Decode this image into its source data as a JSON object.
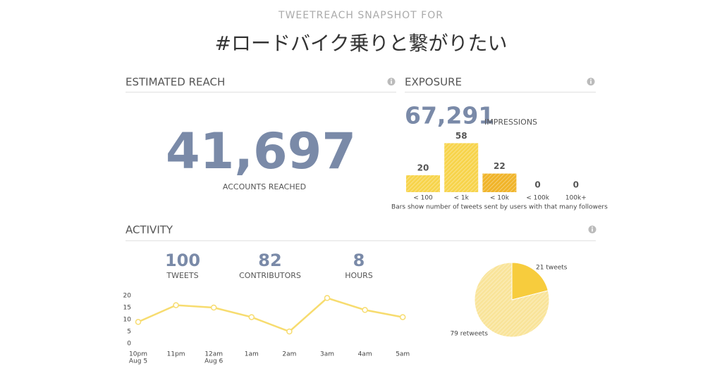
{
  "header": {
    "kicker": "TWEETREACH SNAPSHOT FOR",
    "title": "#ロードバイク乗りと繋がりたい"
  },
  "reach": {
    "heading": "ESTIMATED REACH",
    "value": "41,697",
    "label": "ACCOUNTS REACHED"
  },
  "exposure": {
    "heading": "EXPOSURE",
    "value": "67,291",
    "label": "IMPRESSIONS"
  },
  "activity": {
    "heading": "ACTIVITY",
    "stats": [
      {
        "value": "100",
        "label": "TWEETS"
      },
      {
        "value": "82",
        "label": "CONTRIBUTORS"
      },
      {
        "value": "8",
        "label": "HOURS"
      }
    ]
  },
  "chart_data": [
    {
      "type": "bar",
      "categories": [
        "< 100",
        "< 1k",
        "< 10k",
        "< 100k",
        "100k+"
      ],
      "values": [
        20,
        58,
        22,
        0,
        0
      ],
      "colors": [
        "#f7d44c",
        "#f7d44c",
        "#f0b429",
        "#f7d44c",
        "#f7d44c"
      ],
      "note": "Bars show number of tweets sent by users with that many followers"
    },
    {
      "type": "line",
      "categories": [
        "10pm",
        "11pm",
        "12am",
        "1am",
        "2am",
        "3am",
        "4am",
        "5am"
      ],
      "category_sublabels": [
        "Aug 5",
        null,
        "Aug 6",
        null,
        null,
        null,
        null,
        null
      ],
      "values": [
        9,
        16,
        15,
        11,
        5,
        19,
        14,
        11
      ],
      "color": "#f7dc6f",
      "ylim": [
        0,
        20
      ],
      "yticks": [
        0,
        5,
        10,
        15,
        20
      ]
    },
    {
      "type": "pie",
      "categories": [
        "tweets",
        "retweets"
      ],
      "values": [
        21,
        79
      ],
      "value_labels": [
        "21 tweets",
        "79 retweets"
      ],
      "colors": [
        "#f7cc3d",
        "#f9e49a"
      ]
    }
  ]
}
